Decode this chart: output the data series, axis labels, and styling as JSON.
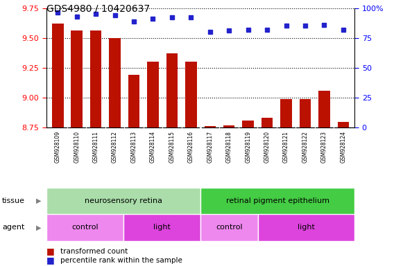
{
  "title": "GDS4980 / 10420637",
  "samples": [
    "GSM928109",
    "GSM928110",
    "GSM928111",
    "GSM928112",
    "GSM928113",
    "GSM928114",
    "GSM928115",
    "GSM928116",
    "GSM928117",
    "GSM928118",
    "GSM928119",
    "GSM928120",
    "GSM928121",
    "GSM928122",
    "GSM928123",
    "GSM928124"
  ],
  "transformed_count": [
    9.62,
    9.56,
    9.56,
    9.5,
    9.19,
    9.3,
    9.37,
    9.3,
    8.765,
    8.77,
    8.81,
    8.83,
    8.99,
    8.99,
    9.06,
    8.8
  ],
  "percentile_rank": [
    96,
    93,
    95,
    94,
    89,
    91,
    92,
    92,
    80,
    81,
    82,
    82,
    85,
    85,
    86,
    82
  ],
  "ylim_left": [
    8.75,
    9.75
  ],
  "ylim_right": [
    0,
    100
  ],
  "yticks_left": [
    8.75,
    9.0,
    9.25,
    9.5,
    9.75
  ],
  "yticks_right": [
    0,
    25,
    50,
    75,
    100
  ],
  "bar_color": "#bb1100",
  "dot_color": "#2222cc",
  "tissue_colors": [
    "#aaddaa",
    "#44cc44"
  ],
  "tissue_labels": [
    {
      "text": "neurosensory retina",
      "start": 0,
      "end": 7
    },
    {
      "text": "retinal pigment epithelium",
      "start": 8,
      "end": 15
    }
  ],
  "agent_labels": [
    {
      "text": "control",
      "start": 0,
      "end": 3,
      "color": "#ee88ee"
    },
    {
      "text": "light",
      "start": 4,
      "end": 7,
      "color": "#dd44dd"
    },
    {
      "text": "control",
      "start": 8,
      "end": 10,
      "color": "#ee88ee"
    },
    {
      "text": "light",
      "start": 11,
      "end": 15,
      "color": "#dd44dd"
    }
  ]
}
